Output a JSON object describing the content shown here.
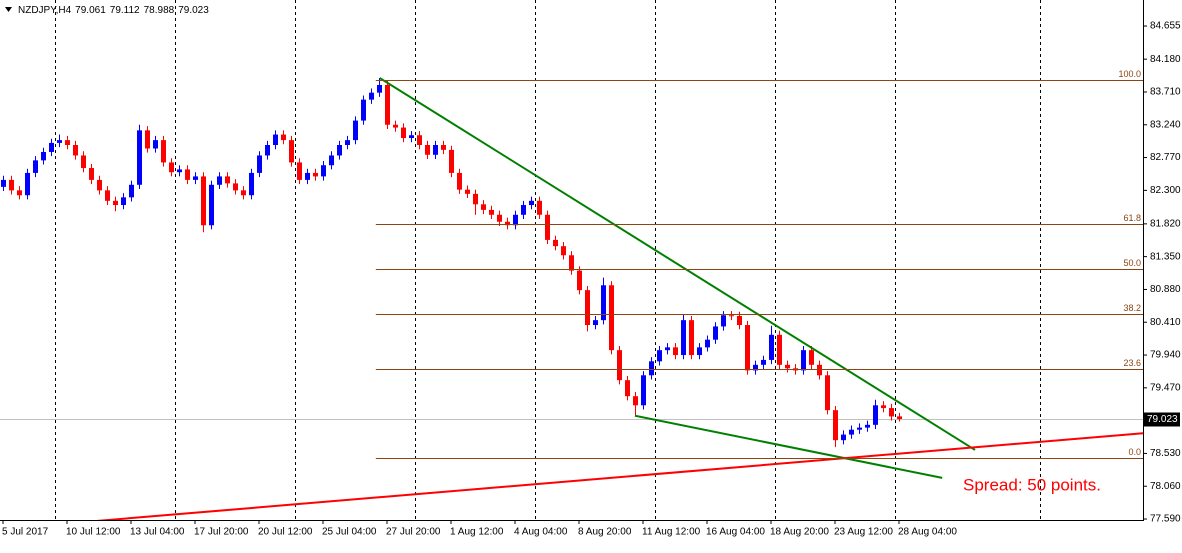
{
  "chart_data": {
    "type": "candlestick",
    "header": {
      "symbol": "NZDJPY,H4",
      "open": 79.061,
      "high": 79.112,
      "low": 78.988,
      "close": 79.023
    },
    "spread_text": "Spread: 50 points.",
    "up_color": "#0000ff",
    "down_color": "#ff0000",
    "xlim": [
      -0.375,
      142.5
    ],
    "xticks": [
      {
        "value": 0,
        "label": "5 Jul 2017"
      },
      {
        "value": 8,
        "label": "10 Jul 12:00"
      },
      {
        "value": 16,
        "label": "13 Jul 04:00"
      },
      {
        "value": 24,
        "label": "17 Jul 20:00"
      },
      {
        "value": 32,
        "label": "20 Jul 12:00"
      },
      {
        "value": 40,
        "label": "25 Jul 04:00"
      },
      {
        "value": 48,
        "label": "27 Jul 20:00"
      },
      {
        "value": 56,
        "label": "1 Aug 12:00"
      },
      {
        "value": 64,
        "label": "4 Aug 04:00"
      },
      {
        "value": 72,
        "label": "8 Aug 20:00"
      },
      {
        "value": 80,
        "label": "11 Aug 12:00"
      },
      {
        "value": 88,
        "label": "16 Aug 04:00"
      },
      {
        "value": 96,
        "label": "18 Aug 20:00"
      },
      {
        "value": 104,
        "label": "23 Aug 12:00"
      },
      {
        "value": 112,
        "label": "28 Aug 04:00"
      }
    ],
    "ylim": [
      77.576,
      85.028
    ],
    "yticks": [
      84.655,
      {
        "value": 84.18,
        "label": "84.180"
      },
      {
        "value": 83.71,
        "label": "83.710"
      },
      {
        "value": 83.24,
        "label": "83.240"
      },
      {
        "value": 82.77,
        "label": "82.770"
      },
      {
        "value": 82.3,
        "label": "82.300"
      },
      {
        "value": 81.82,
        "label": "81.820"
      },
      {
        "value": 81.35,
        "label": "81.350"
      },
      {
        "value": 80.88,
        "label": "80.880"
      },
      {
        "value": 80.41,
        "label": "80.410"
      },
      {
        "value": 79.94,
        "label": "79.940"
      },
      {
        "value": 79.47,
        "label": "79.470"
      },
      {
        "value": 78.53,
        "label": "78.530"
      },
      {
        "value": 78.06,
        "label": "78.060"
      },
      {
        "value": 77.59,
        "label": "77.590"
      }
    ],
    "candles": [
      [
        82.35,
        82.51,
        82.29,
        82.45
      ],
      [
        82.45,
        82.51,
        82.24,
        82.3
      ],
      [
        82.3,
        82.36,
        82.17,
        82.23
      ],
      [
        82.23,
        82.61,
        82.17,
        82.55
      ],
      [
        82.55,
        82.79,
        82.49,
        82.73
      ],
      [
        82.73,
        82.91,
        82.67,
        82.85
      ],
      [
        82.85,
        83.04,
        82.79,
        82.98
      ],
      [
        82.98,
        83.1,
        82.92,
        83.02
      ],
      [
        83.02,
        83.08,
        82.89,
        82.95
      ],
      [
        82.95,
        83.01,
        82.74,
        82.8
      ],
      [
        82.8,
        82.86,
        82.56,
        82.62
      ],
      [
        82.62,
        82.68,
        82.39,
        82.45
      ],
      [
        82.45,
        82.51,
        82.24,
        82.3
      ],
      [
        82.3,
        82.36,
        82.09,
        82.15
      ],
      [
        82.15,
        82.21,
        82.0,
        82.09
      ],
      [
        82.09,
        82.26,
        82.03,
        82.2
      ],
      [
        82.2,
        82.44,
        82.14,
        82.38
      ],
      [
        82.38,
        83.24,
        82.32,
        83.16
      ],
      [
        83.16,
        83.22,
        82.84,
        82.9
      ],
      [
        82.9,
        83.08,
        82.84,
        83.02
      ],
      [
        83.02,
        83.08,
        82.64,
        82.7
      ],
      [
        82.7,
        82.76,
        82.5,
        82.56
      ],
      [
        82.56,
        82.66,
        82.5,
        82.6
      ],
      [
        82.6,
        82.66,
        82.39,
        82.45
      ],
      [
        82.45,
        82.56,
        82.39,
        82.5
      ],
      [
        82.5,
        82.56,
        81.7,
        81.8
      ],
      [
        81.8,
        82.44,
        81.74,
        82.38
      ],
      [
        82.38,
        82.56,
        82.32,
        82.5
      ],
      [
        82.5,
        82.56,
        82.34,
        82.4
      ],
      [
        82.4,
        82.46,
        82.24,
        82.3
      ],
      [
        82.3,
        82.36,
        82.17,
        82.23
      ],
      [
        82.23,
        82.61,
        82.17,
        82.55
      ],
      [
        82.55,
        82.86,
        82.49,
        82.8
      ],
      [
        82.8,
        83.01,
        82.74,
        82.95
      ],
      [
        82.95,
        83.16,
        82.89,
        83.1
      ],
      [
        83.1,
        83.16,
        82.96,
        83.02
      ],
      [
        83.02,
        83.08,
        82.64,
        82.7
      ],
      [
        82.7,
        82.76,
        82.39,
        82.45
      ],
      [
        82.45,
        82.61,
        82.39,
        82.55
      ],
      [
        82.55,
        82.61,
        82.44,
        82.5
      ],
      [
        82.5,
        82.72,
        82.44,
        82.66
      ],
      [
        82.66,
        82.86,
        82.6,
        82.8
      ],
      [
        82.8,
        83.01,
        82.74,
        82.95
      ],
      [
        82.95,
        83.08,
        82.89,
        83.02
      ],
      [
        83.02,
        83.36,
        82.96,
        83.3
      ],
      [
        83.3,
        83.66,
        83.24,
        83.6
      ],
      [
        83.6,
        83.76,
        83.54,
        83.7
      ],
      [
        83.7,
        83.91,
        83.64,
        83.81
      ],
      [
        83.81,
        83.87,
        83.18,
        83.24
      ],
      [
        83.24,
        83.3,
        83.14,
        83.2
      ],
      [
        83.2,
        83.26,
        82.99,
        83.05
      ],
      [
        83.05,
        83.15,
        82.99,
        83.09
      ],
      [
        83.09,
        83.15,
        82.89,
        82.95
      ],
      [
        82.95,
        83.01,
        82.75,
        82.81
      ],
      [
        82.81,
        83.01,
        82.75,
        82.95
      ],
      [
        82.95,
        83.01,
        82.82,
        82.88
      ],
      [
        82.88,
        82.94,
        82.49,
        82.55
      ],
      [
        82.55,
        82.61,
        82.25,
        82.31
      ],
      [
        82.31,
        82.37,
        82.19,
        82.25
      ],
      [
        82.25,
        82.31,
        81.95,
        82.1
      ],
      [
        82.1,
        82.16,
        81.96,
        82.02
      ],
      [
        82.02,
        82.08,
        81.89,
        81.95
      ],
      [
        81.95,
        82.01,
        81.79,
        81.85
      ],
      [
        81.85,
        81.91,
        81.74,
        81.8
      ],
      [
        81.8,
        82.01,
        81.74,
        81.95
      ],
      [
        81.95,
        82.15,
        81.89,
        82.09
      ],
      [
        82.09,
        82.21,
        82.03,
        82.15
      ],
      [
        82.15,
        82.21,
        81.89,
        81.95
      ],
      [
        81.95,
        82.01,
        81.53,
        81.59
      ],
      [
        81.59,
        81.65,
        81.44,
        81.5
      ],
      [
        81.5,
        81.56,
        81.31,
        81.37
      ],
      [
        81.37,
        81.43,
        81.09,
        81.15
      ],
      [
        81.15,
        81.21,
        80.81,
        80.87
      ],
      [
        80.87,
        80.93,
        80.28,
        80.37
      ],
      [
        80.37,
        80.5,
        80.31,
        80.44
      ],
      [
        80.44,
        81.05,
        80.38,
        80.94
      ],
      [
        80.94,
        81.0,
        79.95,
        80.01
      ],
      [
        80.01,
        80.07,
        79.52,
        79.58
      ],
      [
        79.58,
        79.64,
        79.29,
        79.35
      ],
      [
        79.35,
        79.41,
        79.07,
        79.22
      ],
      [
        79.22,
        79.71,
        79.16,
        79.65
      ],
      [
        79.65,
        79.91,
        79.59,
        79.85
      ],
      [
        79.85,
        80.07,
        79.79,
        80.01
      ],
      [
        80.01,
        80.11,
        79.95,
        80.05
      ],
      [
        80.05,
        80.11,
        79.88,
        79.94
      ],
      [
        79.94,
        80.52,
        79.88,
        80.44
      ],
      [
        80.44,
        80.5,
        79.88,
        79.94
      ],
      [
        79.94,
        80.11,
        79.88,
        80.05
      ],
      [
        80.05,
        80.22,
        79.99,
        80.16
      ],
      [
        80.16,
        80.41,
        80.1,
        80.35
      ],
      [
        80.35,
        80.57,
        80.29,
        80.51
      ],
      [
        80.51,
        80.57,
        80.44,
        80.5
      ],
      [
        80.5,
        80.56,
        80.31,
        80.37
      ],
      [
        80.37,
        80.43,
        79.66,
        79.72
      ],
      [
        79.72,
        79.86,
        79.66,
        79.8
      ],
      [
        79.8,
        79.93,
        79.74,
        79.87
      ],
      [
        79.87,
        80.36,
        79.81,
        80.23
      ],
      [
        80.23,
        80.29,
        79.74,
        79.8
      ],
      [
        79.8,
        79.86,
        79.69,
        79.75
      ],
      [
        79.75,
        79.81,
        79.66,
        79.72
      ],
      [
        79.72,
        80.07,
        79.66,
        80.01
      ],
      [
        80.01,
        80.07,
        79.74,
        79.8
      ],
      [
        79.8,
        79.86,
        79.59,
        79.65
      ],
      [
        79.65,
        79.71,
        79.09,
        79.15
      ],
      [
        79.15,
        79.21,
        78.62,
        78.72
      ],
      [
        78.72,
        78.86,
        78.66,
        78.8
      ],
      [
        78.8,
        78.93,
        78.74,
        78.87
      ],
      [
        78.87,
        78.96,
        78.81,
        78.9
      ],
      [
        78.9,
        79.0,
        78.84,
        78.94
      ],
      [
        78.94,
        79.3,
        78.88,
        79.22
      ],
      [
        79.22,
        79.28,
        79.12,
        79.18
      ],
      [
        79.18,
        79.24,
        79.0,
        79.06
      ],
      [
        79.061,
        79.112,
        78.988,
        79.023
      ]
    ],
    "fibonacci": {
      "high": 83.882,
      "low": 78.464,
      "start": 46.6,
      "color": "#8b4513",
      "levels": [
        {
          "value": 100,
          "label": "100.0"
        },
        {
          "value": 61.8,
          "label": "61.8"
        },
        {
          "value": 50,
          "label": "50.0"
        },
        {
          "value": 38.2,
          "label": "38.2"
        },
        {
          "value": 23.6,
          "label": "23.6"
        },
        {
          "value": 0,
          "label": "0.0"
        }
      ]
    },
    "trendlines": [
      {
        "color": "#008000",
        "x": [
          47.1,
          121.5
        ],
        "values": [
          83.91,
          78.58
        ]
      },
      {
        "color": "#008000",
        "x": [
          79,
          117.4
        ],
        "values": [
          79.07,
          78.18
        ]
      },
      {
        "color": "#ff0000",
        "x": [
          11.5,
          142.5
        ],
        "values": [
          77.56,
          78.82
        ]
      }
    ]
  }
}
